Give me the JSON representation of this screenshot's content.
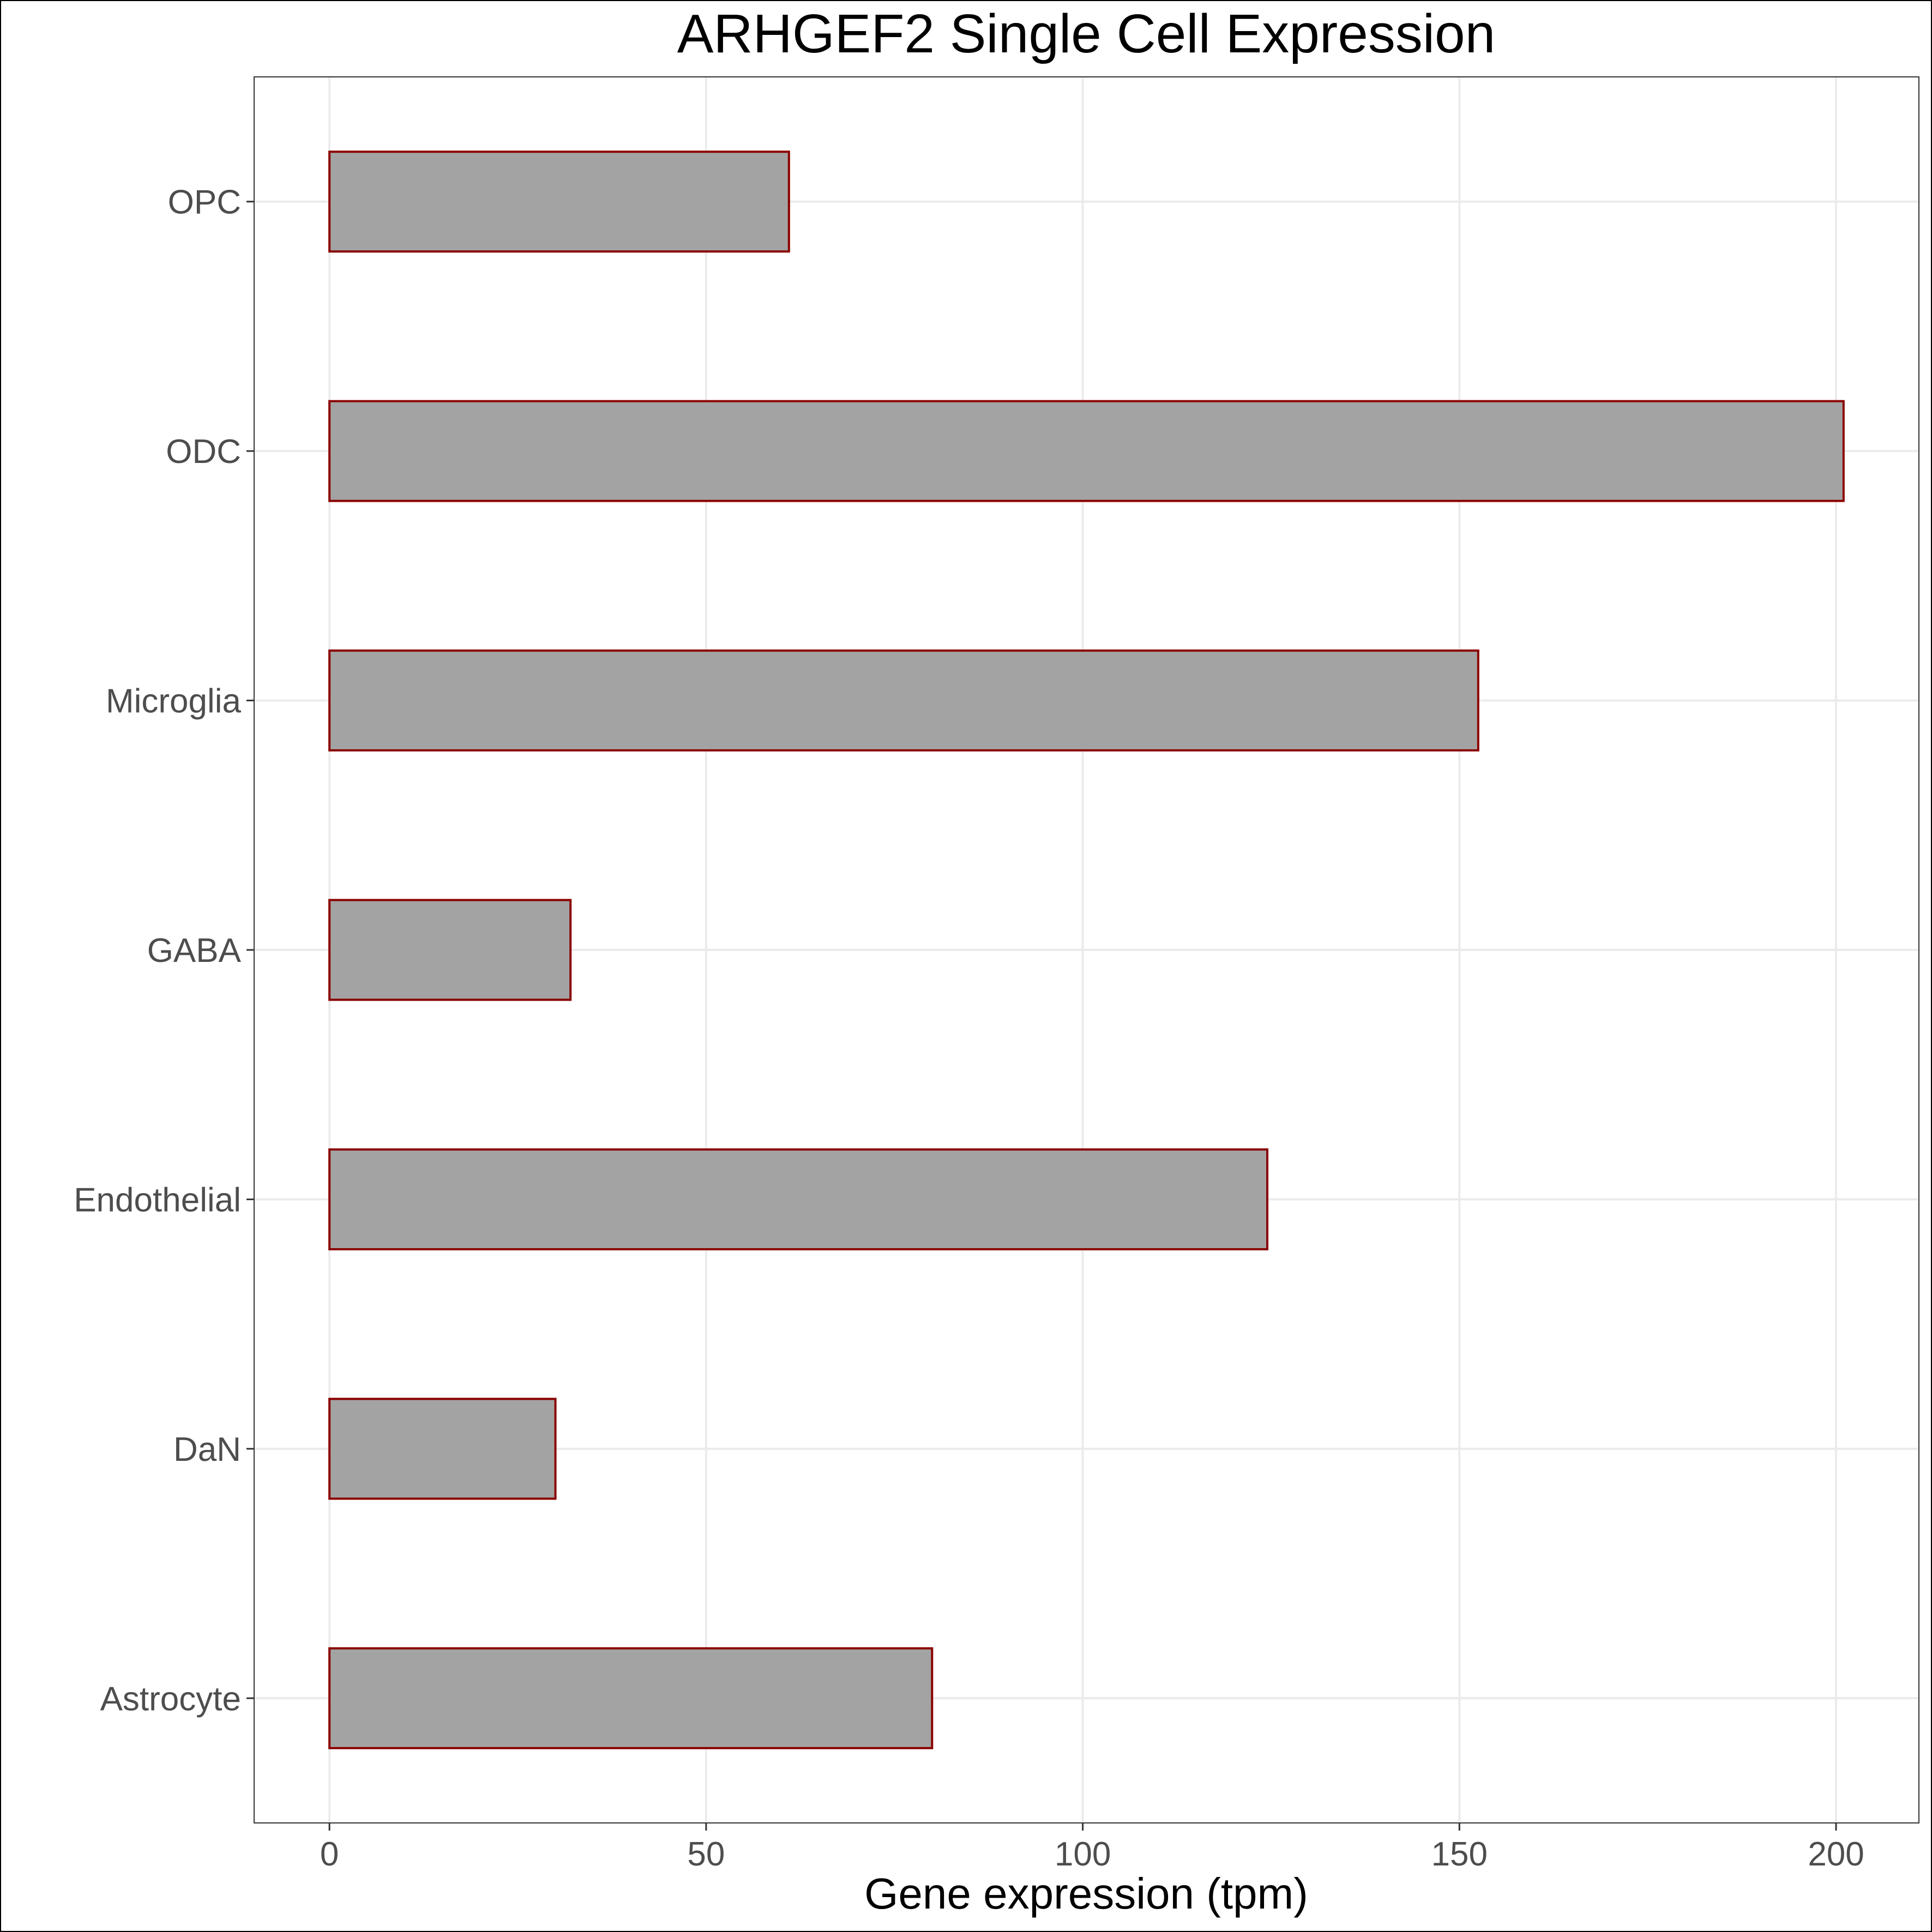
{
  "chart_data": {
    "type": "bar",
    "orientation": "horizontal",
    "title": "ARHGEF2 Single Cell Expression",
    "xlabel": "Gene expression (tpm)",
    "ylabel": "",
    "categories": [
      "OPC",
      "ODC",
      "Microglia",
      "GABA",
      "Endothelial",
      "DaN",
      "Astrocyte"
    ],
    "values": [
      61,
      201,
      152.5,
      32,
      124.5,
      30,
      80
    ],
    "xlim": [
      -10,
      211
    ],
    "xticks": [
      0,
      50,
      100,
      150,
      200
    ],
    "grid": true,
    "legend": "none",
    "colors": {
      "bar_fill": "#a3a3a3",
      "bar_stroke": "#8b0000",
      "grid": "#ebebeb",
      "axis_line": "#000000",
      "tick_text": "#4d4d4d",
      "title_text": "#000000"
    }
  }
}
